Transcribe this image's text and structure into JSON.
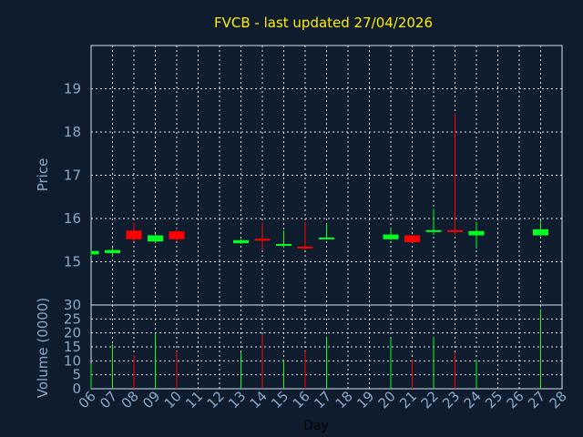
{
  "chart_data": [
    {
      "type": "candlestick",
      "title": "FVCB - last updated 27/04/2026",
      "ylabel": "Price",
      "ylim": [
        14.0,
        20.0
      ],
      "yticks": [
        15,
        16,
        17,
        18,
        19
      ],
      "up_color": "#00ff22",
      "down_color": "#ff0000",
      "candles": [
        {
          "day": "06",
          "open": 15.17,
          "high": 15.27,
          "low": 15.13,
          "close": 15.25
        },
        {
          "day": "07",
          "open": 15.2,
          "high": 15.32,
          "low": 15.11,
          "close": 15.27
        },
        {
          "day": "08",
          "open": 15.72,
          "high": 15.89,
          "low": 15.47,
          "close": 15.52
        },
        {
          "day": "09",
          "open": 15.47,
          "high": 15.64,
          "low": 15.43,
          "close": 15.61
        },
        {
          "day": "10",
          "open": 15.7,
          "high": 15.77,
          "low": 15.48,
          "close": 15.52
        },
        {
          "day": "13",
          "open": 15.43,
          "high": 15.52,
          "low": 15.41,
          "close": 15.5
        },
        {
          "day": "14",
          "open": 15.53,
          "high": 15.9,
          "low": 15.27,
          "close": 15.49
        },
        {
          "day": "15",
          "open": 15.37,
          "high": 15.72,
          "low": 15.32,
          "close": 15.41
        },
        {
          "day": "16",
          "open": 15.35,
          "high": 15.92,
          "low": 15.29,
          "close": 15.32
        },
        {
          "day": "17",
          "open": 15.53,
          "high": 15.89,
          "low": 15.53,
          "close": 15.56
        },
        {
          "day": "20",
          "open": 15.52,
          "high": 15.77,
          "low": 15.5,
          "close": 15.63
        },
        {
          "day": "21",
          "open": 15.61,
          "high": 15.61,
          "low": 15.44,
          "close": 15.45
        },
        {
          "day": "22",
          "open": 15.69,
          "high": 16.22,
          "low": 15.62,
          "close": 15.73
        },
        {
          "day": "23",
          "open": 15.73,
          "high": 18.42,
          "low": 15.62,
          "close": 15.69
        },
        {
          "day": "24",
          "open": 15.61,
          "high": 15.92,
          "low": 15.3,
          "close": 15.71
        },
        {
          "day": "27",
          "open": 15.61,
          "high": 15.97,
          "low": 15.59,
          "close": 15.75
        }
      ]
    },
    {
      "type": "bar",
      "ylabel": "Volume (0000)",
      "xlabel": "Day",
      "ylim": [
        0,
        30
      ],
      "yticks": [
        0,
        5,
        10,
        15,
        20,
        25,
        30
      ],
      "categories": [
        "06",
        "07",
        "08",
        "09",
        "10",
        "11",
        "12",
        "13",
        "14",
        "15",
        "16",
        "17",
        "18",
        "19",
        "20",
        "21",
        "22",
        "23",
        "24",
        "25",
        "26",
        "27",
        "28"
      ],
      "volumes": [
        {
          "day": "06",
          "value": 9,
          "color": "#00ff22"
        },
        {
          "day": "07",
          "value": 16,
          "color": "#00ff22"
        },
        {
          "day": "08",
          "value": 12,
          "color": "#ff0000"
        },
        {
          "day": "09",
          "value": 20,
          "color": "#00ff22"
        },
        {
          "day": "10",
          "value": 13.5,
          "color": "#ff0000"
        },
        {
          "day": "13",
          "value": 13,
          "color": "#00ff22"
        },
        {
          "day": "14",
          "value": 19.5,
          "color": "#ff0000"
        },
        {
          "day": "15",
          "value": 10.5,
          "color": "#00ff22"
        },
        {
          "day": "16",
          "value": 13.5,
          "color": "#ff0000"
        },
        {
          "day": "17",
          "value": 18.5,
          "color": "#00ff22"
        },
        {
          "day": "20",
          "value": 18,
          "color": "#00ff22"
        },
        {
          "day": "21",
          "value": 10.5,
          "color": "#ff0000"
        },
        {
          "day": "22",
          "value": 18.5,
          "color": "#00ff22"
        },
        {
          "day": "23",
          "value": 13,
          "color": "#ff0000"
        },
        {
          "day": "24",
          "value": 10.5,
          "color": "#00ff22"
        },
        {
          "day": "27",
          "value": 28.5,
          "color": "#00ff22"
        }
      ]
    }
  ]
}
